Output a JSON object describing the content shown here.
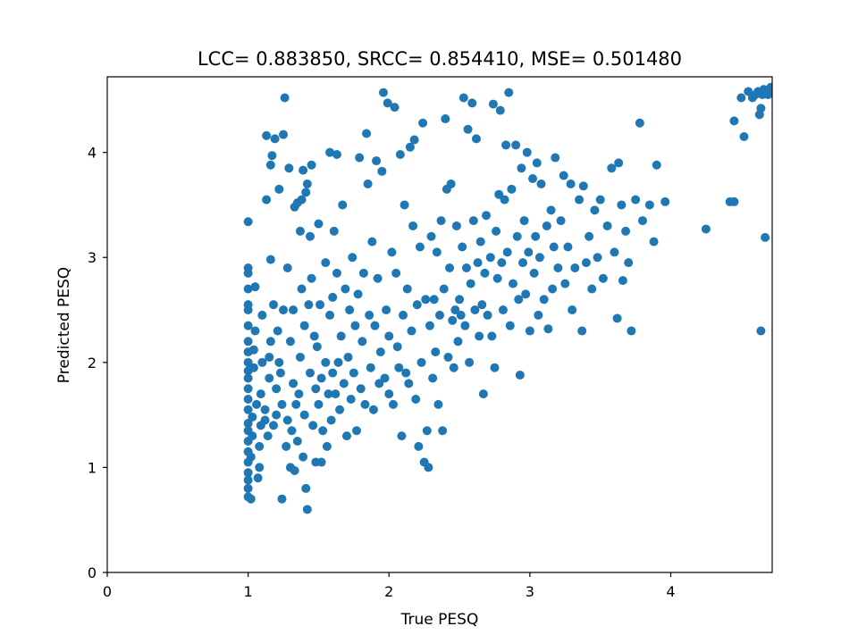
{
  "chart_data": {
    "type": "scatter",
    "title": "LCC= 0.883850, SRCC= 0.854410, MSE= 0.501480",
    "xlabel": "True PESQ",
    "ylabel": "Predicted PESQ",
    "xlim": [
      0,
      4.72
    ],
    "ylim": [
      0,
      4.72
    ],
    "xticks": [
      0,
      1,
      2,
      3,
      4
    ],
    "yticks": [
      0,
      1,
      2,
      3,
      4
    ],
    "grid": false,
    "marker_color": "#1f77b4",
    "series": [
      {
        "points": [
          [
            1.0,
            0.72
          ],
          [
            1.0,
            0.8
          ],
          [
            1.0,
            0.88
          ],
          [
            1.0,
            0.95
          ],
          [
            1.0,
            1.05
          ],
          [
            1.0,
            1.15
          ],
          [
            1.0,
            1.25
          ],
          [
            1.0,
            1.35
          ],
          [
            1.0,
            1.42
          ],
          [
            1.0,
            1.55
          ],
          [
            1.0,
            1.65
          ],
          [
            1.0,
            1.75
          ],
          [
            1.0,
            1.85
          ],
          [
            1.0,
            1.92
          ],
          [
            1.0,
            2.0
          ],
          [
            1.0,
            2.1
          ],
          [
            1.0,
            2.2
          ],
          [
            1.0,
            2.35
          ],
          [
            1.0,
            2.5
          ],
          [
            1.0,
            2.55
          ],
          [
            1.0,
            2.7
          ],
          [
            1.0,
            2.85
          ],
          [
            1.0,
            2.9
          ],
          [
            1.0,
            3.34
          ],
          [
            1.02,
            0.7
          ],
          [
            1.02,
            1.1
          ],
          [
            1.03,
            1.3
          ],
          [
            1.03,
            1.48
          ],
          [
            1.04,
            1.95
          ],
          [
            1.04,
            2.12
          ],
          [
            1.05,
            2.72
          ],
          [
            1.05,
            2.3
          ],
          [
            1.06,
            1.6
          ],
          [
            1.07,
            0.9
          ],
          [
            1.08,
            1.0
          ],
          [
            1.08,
            1.2
          ],
          [
            1.09,
            1.4
          ],
          [
            1.09,
            1.7
          ],
          [
            1.1,
            2.0
          ],
          [
            1.1,
            2.45
          ],
          [
            1.12,
            1.45
          ],
          [
            1.12,
            1.55
          ],
          [
            1.13,
            3.55
          ],
          [
            1.13,
            4.16
          ],
          [
            1.14,
            1.3
          ],
          [
            1.15,
            1.85
          ],
          [
            1.15,
            2.05
          ],
          [
            1.16,
            2.2
          ],
          [
            1.16,
            2.98
          ],
          [
            1.16,
            3.88
          ],
          [
            1.17,
            3.97
          ],
          [
            1.18,
            1.4
          ],
          [
            1.18,
            2.55
          ],
          [
            1.19,
            4.13
          ],
          [
            1.2,
            1.5
          ],
          [
            1.2,
            1.75
          ],
          [
            1.21,
            2.3
          ],
          [
            1.22,
            3.65
          ],
          [
            1.22,
            2.0
          ],
          [
            1.23,
            1.9
          ],
          [
            1.24,
            0.7
          ],
          [
            1.24,
            1.6
          ],
          [
            1.25,
            4.17
          ],
          [
            1.25,
            2.5
          ],
          [
            1.26,
            4.52
          ],
          [
            1.27,
            1.2
          ],
          [
            1.28,
            1.45
          ],
          [
            1.28,
            2.9
          ],
          [
            1.29,
            3.85
          ],
          [
            1.3,
            1.0
          ],
          [
            1.3,
            2.2
          ],
          [
            1.31,
            1.35
          ],
          [
            1.32,
            1.8
          ],
          [
            1.32,
            2.5
          ],
          [
            1.33,
            3.48
          ],
          [
            1.33,
            0.97
          ],
          [
            1.34,
            1.6
          ],
          [
            1.35,
            3.52
          ],
          [
            1.35,
            1.25
          ],
          [
            1.36,
            1.7
          ],
          [
            1.37,
            2.05
          ],
          [
            1.37,
            3.25
          ],
          [
            1.38,
            2.7
          ],
          [
            1.38,
            3.55
          ],
          [
            1.39,
            1.1
          ],
          [
            1.39,
            3.83
          ],
          [
            1.4,
            2.35
          ],
          [
            1.4,
            1.5
          ],
          [
            1.41,
            0.8
          ],
          [
            1.41,
            3.62
          ],
          [
            1.42,
            3.7
          ],
          [
            1.42,
            0.6
          ],
          [
            1.43,
            2.55
          ],
          [
            1.44,
            3.2
          ],
          [
            1.44,
            1.9
          ],
          [
            1.45,
            2.8
          ],
          [
            1.45,
            3.88
          ],
          [
            1.46,
            1.4
          ],
          [
            1.47,
            2.25
          ],
          [
            1.48,
            1.05
          ],
          [
            1.48,
            1.75
          ],
          [
            1.49,
            2.15
          ],
          [
            1.5,
            3.32
          ],
          [
            1.5,
            1.6
          ],
          [
            1.51,
            2.55
          ],
          [
            1.52,
            1.85
          ],
          [
            1.52,
            1.05
          ],
          [
            1.53,
            1.35
          ],
          [
            1.55,
            2.0
          ],
          [
            1.55,
            2.95
          ],
          [
            1.56,
            1.2
          ],
          [
            1.57,
            1.7
          ],
          [
            1.58,
            4.0
          ],
          [
            1.58,
            2.45
          ],
          [
            1.59,
            1.45
          ],
          [
            1.6,
            1.9
          ],
          [
            1.6,
            2.62
          ],
          [
            1.61,
            3.25
          ],
          [
            1.62,
            1.7
          ],
          [
            1.63,
            2.85
          ],
          [
            1.63,
            3.98
          ],
          [
            1.64,
            2.0
          ],
          [
            1.65,
            1.55
          ],
          [
            1.66,
            2.25
          ],
          [
            1.67,
            3.5
          ],
          [
            1.68,
            1.8
          ],
          [
            1.69,
            2.7
          ],
          [
            1.7,
            1.3
          ],
          [
            1.71,
            2.05
          ],
          [
            1.72,
            2.5
          ],
          [
            1.73,
            1.65
          ],
          [
            1.74,
            3.0
          ],
          [
            1.75,
            1.9
          ],
          [
            1.76,
            2.35
          ],
          [
            1.77,
            1.35
          ],
          [
            1.78,
            2.65
          ],
          [
            1.79,
            3.95
          ],
          [
            1.8,
            1.75
          ],
          [
            1.81,
            2.2
          ],
          [
            1.82,
            2.85
          ],
          [
            1.83,
            1.6
          ],
          [
            1.84,
            4.18
          ],
          [
            1.85,
            3.7
          ],
          [
            1.86,
            2.45
          ],
          [
            1.87,
            1.95
          ],
          [
            1.88,
            3.15
          ],
          [
            1.89,
            1.55
          ],
          [
            1.9,
            2.35
          ],
          [
            1.91,
            3.92
          ],
          [
            1.92,
            2.8
          ],
          [
            1.93,
            1.8
          ],
          [
            1.94,
            2.1
          ],
          [
            1.95,
            3.82
          ],
          [
            1.96,
            4.57
          ],
          [
            1.97,
            1.85
          ],
          [
            1.98,
            2.5
          ],
          [
            1.99,
            4.47
          ],
          [
            2.0,
            1.7
          ],
          [
            2.0,
            2.25
          ],
          [
            2.02,
            3.05
          ],
          [
            2.03,
            1.6
          ],
          [
            2.04,
            4.43
          ],
          [
            2.05,
            2.85
          ],
          [
            2.06,
            2.15
          ],
          [
            2.07,
            1.95
          ],
          [
            2.08,
            3.98
          ],
          [
            2.09,
            1.3
          ],
          [
            2.1,
            2.45
          ],
          [
            2.11,
            3.5
          ],
          [
            2.12,
            1.9
          ],
          [
            2.13,
            2.7
          ],
          [
            2.14,
            1.8
          ],
          [
            2.15,
            4.05
          ],
          [
            2.16,
            2.3
          ],
          [
            2.17,
            3.3
          ],
          [
            2.18,
            4.12
          ],
          [
            2.19,
            1.65
          ],
          [
            2.2,
            2.55
          ],
          [
            2.21,
            1.2
          ],
          [
            2.22,
            3.1
          ],
          [
            2.23,
            2.0
          ],
          [
            2.24,
            4.28
          ],
          [
            2.25,
            1.05
          ],
          [
            2.26,
            2.6
          ],
          [
            2.27,
            1.35
          ],
          [
            2.28,
            1.0
          ],
          [
            2.29,
            2.35
          ],
          [
            2.3,
            3.2
          ],
          [
            2.31,
            1.85
          ],
          [
            2.32,
            2.6
          ],
          [
            2.33,
            2.1
          ],
          [
            2.34,
            3.05
          ],
          [
            2.35,
            1.6
          ],
          [
            2.36,
            2.45
          ],
          [
            2.37,
            3.35
          ],
          [
            2.38,
            1.35
          ],
          [
            2.39,
            2.7
          ],
          [
            2.4,
            4.32
          ],
          [
            2.41,
            3.65
          ],
          [
            2.42,
            2.05
          ],
          [
            2.43,
            2.9
          ],
          [
            2.44,
            3.7
          ],
          [
            2.45,
            2.4
          ],
          [
            2.46,
            1.95
          ],
          [
            2.47,
            2.5
          ],
          [
            2.48,
            3.3
          ],
          [
            2.49,
            2.2
          ],
          [
            2.5,
            2.6
          ],
          [
            2.51,
            2.45
          ],
          [
            2.52,
            3.1
          ],
          [
            2.53,
            4.52
          ],
          [
            2.54,
            2.35
          ],
          [
            2.55,
            2.9
          ],
          [
            2.56,
            4.22
          ],
          [
            2.57,
            2.0
          ],
          [
            2.58,
            2.75
          ],
          [
            2.59,
            4.47
          ],
          [
            2.6,
            3.35
          ],
          [
            2.61,
            2.5
          ],
          [
            2.62,
            4.13
          ],
          [
            2.63,
            2.95
          ],
          [
            2.64,
            2.25
          ],
          [
            2.65,
            3.15
          ],
          [
            2.66,
            2.55
          ],
          [
            2.67,
            1.7
          ],
          [
            2.68,
            2.85
          ],
          [
            2.69,
            3.4
          ],
          [
            2.7,
            2.45
          ],
          [
            2.72,
            3.0
          ],
          [
            2.73,
            2.25
          ],
          [
            2.74,
            4.46
          ],
          [
            2.75,
            1.95
          ],
          [
            2.76,
            3.25
          ],
          [
            2.77,
            2.8
          ],
          [
            2.78,
            3.6
          ],
          [
            2.79,
            4.4
          ],
          [
            2.8,
            2.95
          ],
          [
            2.81,
            2.5
          ],
          [
            2.82,
            3.55
          ],
          [
            2.83,
            4.07
          ],
          [
            2.84,
            3.05
          ],
          [
            2.85,
            4.57
          ],
          [
            2.86,
            2.35
          ],
          [
            2.87,
            3.65
          ],
          [
            2.88,
            2.75
          ],
          [
            2.9,
            4.07
          ],
          [
            2.91,
            3.2
          ],
          [
            2.92,
            2.6
          ],
          [
            2.93,
            1.88
          ],
          [
            2.94,
            3.85
          ],
          [
            2.95,
            2.95
          ],
          [
            2.96,
            3.35
          ],
          [
            2.97,
            2.65
          ],
          [
            2.98,
            4.0
          ],
          [
            2.99,
            3.05
          ],
          [
            3.0,
            2.3
          ],
          [
            3.02,
            3.75
          ],
          [
            3.03,
            2.85
          ],
          [
            3.04,
            3.2
          ],
          [
            3.05,
            3.9
          ],
          [
            3.06,
            2.45
          ],
          [
            3.07,
            3.0
          ],
          [
            3.08,
            3.7
          ],
          [
            3.1,
            2.6
          ],
          [
            3.12,
            3.3
          ],
          [
            3.13,
            2.32
          ],
          [
            3.15,
            3.45
          ],
          [
            3.16,
            2.7
          ],
          [
            3.17,
            3.1
          ],
          [
            3.18,
            3.95
          ],
          [
            3.2,
            2.9
          ],
          [
            3.22,
            3.35
          ],
          [
            3.24,
            3.78
          ],
          [
            3.25,
            2.75
          ],
          [
            3.27,
            3.1
          ],
          [
            3.29,
            3.7
          ],
          [
            3.3,
            2.5
          ],
          [
            3.32,
            2.9
          ],
          [
            3.35,
            3.55
          ],
          [
            3.37,
            2.3
          ],
          [
            3.38,
            3.68
          ],
          [
            3.4,
            2.95
          ],
          [
            3.42,
            3.2
          ],
          [
            3.44,
            2.7
          ],
          [
            3.46,
            3.45
          ],
          [
            3.48,
            3.0
          ],
          [
            3.5,
            3.55
          ],
          [
            3.52,
            2.8
          ],
          [
            3.55,
            3.3
          ],
          [
            3.58,
            3.85
          ],
          [
            3.6,
            3.05
          ],
          [
            3.62,
            2.42
          ],
          [
            3.63,
            3.9
          ],
          [
            3.65,
            3.5
          ],
          [
            3.66,
            2.78
          ],
          [
            3.68,
            3.25
          ],
          [
            3.7,
            2.95
          ],
          [
            3.72,
            2.3
          ],
          [
            3.75,
            3.55
          ],
          [
            3.78,
            4.28
          ],
          [
            3.8,
            3.35
          ],
          [
            3.85,
            3.5
          ],
          [
            3.88,
            3.15
          ],
          [
            3.9,
            3.88
          ],
          [
            3.96,
            3.53
          ],
          [
            4.25,
            3.27
          ],
          [
            4.42,
            3.53
          ],
          [
            4.45,
            3.53
          ],
          [
            4.45,
            4.3
          ],
          [
            4.5,
            4.52
          ],
          [
            4.52,
            4.15
          ],
          [
            4.55,
            4.58
          ],
          [
            4.58,
            4.52
          ],
          [
            4.6,
            4.55
          ],
          [
            4.62,
            4.58
          ],
          [
            4.63,
            4.36
          ],
          [
            4.64,
            4.42
          ],
          [
            4.64,
            2.3
          ],
          [
            4.65,
            4.55
          ],
          [
            4.66,
            4.6
          ],
          [
            4.67,
            3.19
          ],
          [
            4.68,
            4.58
          ],
          [
            4.69,
            4.55
          ],
          [
            4.7,
            4.6
          ],
          [
            4.71,
            4.62
          ],
          [
            4.72,
            4.6
          ]
        ]
      }
    ]
  }
}
